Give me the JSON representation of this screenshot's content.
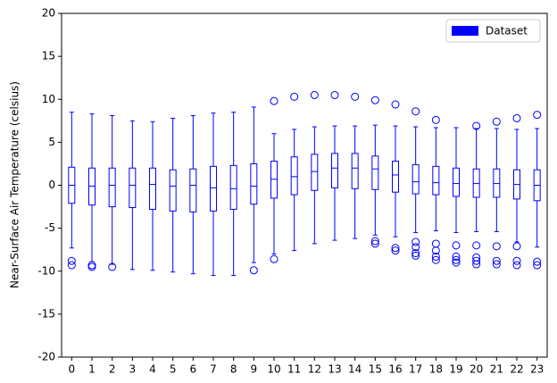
{
  "chart_data": {
    "type": "box",
    "y_label": "Near-Surface Air Temperature (celsius)",
    "categories": [
      "0",
      "1",
      "2",
      "3",
      "4",
      "5",
      "6",
      "7",
      "8",
      "9",
      "10",
      "11",
      "12",
      "13",
      "14",
      "15",
      "16",
      "17",
      "18",
      "19",
      "20",
      "21",
      "22",
      "23"
    ],
    "xlim": [
      -0.5,
      23.5
    ],
    "ylim": [
      -20,
      20
    ],
    "yticks": [
      -20,
      -15,
      -10,
      -5,
      0,
      5,
      10,
      15,
      20
    ],
    "legend": "upper right",
    "series": [
      {
        "name": "Dataset",
        "color": "#0000ff",
        "whislo": [
          -7.3,
          -8.9,
          -9.2,
          -9.8,
          -9.9,
          -10.1,
          -10.3,
          -10.5,
          -10.5,
          -9.0,
          -8.0,
          -7.6,
          -6.8,
          -6.4,
          -6.2,
          -5.8,
          -6.0,
          -5.5,
          -5.3,
          -5.5,
          -5.4,
          -5.4,
          -6.6,
          -7.2
        ],
        "q1": [
          -2.1,
          -2.3,
          -2.5,
          -2.6,
          -2.8,
          -3.0,
          -3.1,
          -3.0,
          -2.8,
          -2.2,
          -1.5,
          -1.1,
          -0.6,
          -0.3,
          -0.4,
          -0.5,
          -0.8,
          -1.0,
          -1.1,
          -1.3,
          -1.4,
          -1.4,
          -1.6,
          -1.8
        ],
        "median": [
          0.0,
          -0.1,
          0.0,
          0.0,
          0.1,
          -0.1,
          0.0,
          -0.3,
          -0.4,
          -0.1,
          0.7,
          1.0,
          1.6,
          2.0,
          2.0,
          1.9,
          1.2,
          0.4,
          0.3,
          0.2,
          0.2,
          0.2,
          0.1,
          0.0
        ],
        "q3": [
          2.1,
          2.0,
          2.0,
          2.0,
          2.0,
          1.8,
          1.9,
          2.2,
          2.3,
          2.5,
          2.8,
          3.3,
          3.6,
          3.7,
          3.7,
          3.4,
          2.8,
          2.4,
          2.2,
          2.0,
          1.9,
          1.9,
          1.8,
          1.8
        ],
        "whishi": [
          8.5,
          8.3,
          8.1,
          7.5,
          7.4,
          7.8,
          8.1,
          8.4,
          8.5,
          9.1,
          6.0,
          6.5,
          6.8,
          6.9,
          6.9,
          7.0,
          6.9,
          6.8,
          6.7,
          6.7,
          6.6,
          6.6,
          6.5,
          6.6
        ],
        "outliers": [
          [
            -8.8,
            -9.3
          ],
          [
            -9.3,
            -9.5
          ],
          [
            -9.5
          ],
          [],
          [],
          [],
          [],
          [],
          [],
          [
            -9.9
          ],
          [
            9.8,
            -8.6
          ],
          [
            10.3
          ],
          [
            10.5
          ],
          [
            10.5
          ],
          [
            10.3
          ],
          [
            9.9,
            -6.5,
            -6.8
          ],
          [
            9.4,
            -7.3,
            -7.6
          ],
          [
            8.6,
            -6.6,
            -7.2,
            -7.9,
            -8.2
          ],
          [
            7.6,
            -6.8,
            -7.6,
            -8.3,
            -8.7
          ],
          [
            -7.0,
            -8.3,
            -8.7,
            -9.0
          ],
          [
            6.9,
            -7.0,
            -8.4,
            -8.8,
            -9.2
          ],
          [
            7.4,
            -7.1,
            -8.8,
            -9.2
          ],
          [
            7.8,
            -7.1,
            -8.8,
            -9.3
          ],
          [
            8.2,
            -8.9,
            -9.3
          ]
        ]
      }
    ]
  }
}
